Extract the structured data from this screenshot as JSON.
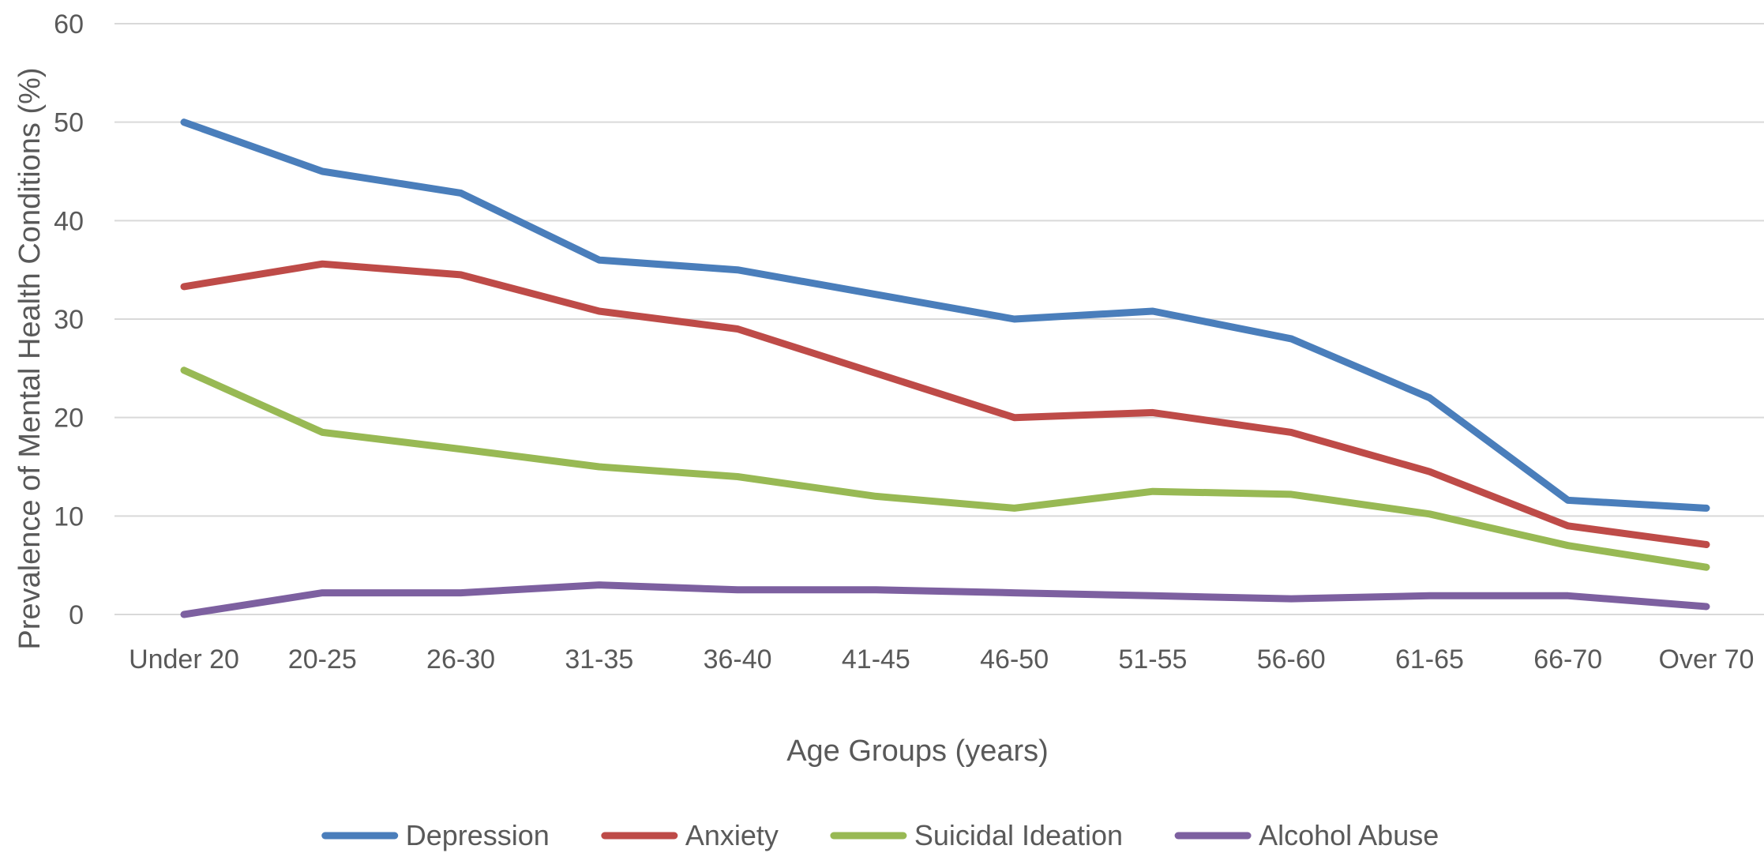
{
  "chart_data": {
    "type": "line",
    "xlabel": "Age Groups (years)",
    "ylabel": "Prevalence of Mental Health Conditions (%)",
    "ylim": [
      0,
      60
    ],
    "yticks": [
      "0",
      "10",
      "20",
      "30",
      "40",
      "50",
      "60"
    ],
    "grid": true,
    "legend_position": "bottom",
    "categories": [
      "Under 20",
      "20-25",
      "26-30",
      "31-35",
      "36-40",
      "41-45",
      "46-50",
      "51-55",
      "56-60",
      "61-65",
      "66-70",
      "Over 70"
    ],
    "series": [
      {
        "name": "Depression",
        "color": "#4a7ebb",
        "values": [
          50,
          45,
          42.8,
          36,
          35,
          32.5,
          30,
          30.8,
          28,
          22,
          11.6,
          10.8
        ]
      },
      {
        "name": "Anxiety",
        "color": "#be4b48",
        "values": [
          33.3,
          35.6,
          34.5,
          30.8,
          29,
          24.5,
          20,
          20.5,
          18.5,
          14.5,
          9,
          7.1
        ]
      },
      {
        "name": "Suicidal Ideation",
        "color": "#98b954",
        "values": [
          24.8,
          18.5,
          16.8,
          15,
          14,
          12,
          10.8,
          12.5,
          12.2,
          10.2,
          7,
          4.8
        ]
      },
      {
        "name": "Alcohol Abuse",
        "color": "#7d60a0",
        "values": [
          0,
          2.2,
          2.2,
          3,
          2.5,
          2.5,
          2.2,
          1.9,
          1.6,
          1.9,
          1.9,
          0.8
        ]
      }
    ]
  }
}
